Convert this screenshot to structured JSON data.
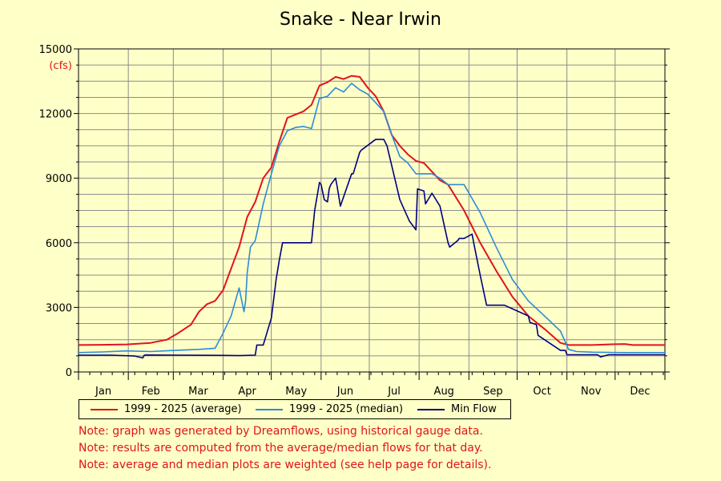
{
  "chart_data": {
    "type": "line",
    "title": "Snake - Near Irwin",
    "ylabel": "(cfs)",
    "ylim": [
      0,
      15000
    ],
    "yticks": [
      0,
      3000,
      6000,
      9000,
      12000,
      15000
    ],
    "ytick_labels": [
      "0",
      "3000",
      "6000",
      "9000",
      "12000",
      "15000"
    ],
    "xlim": [
      0,
      365
    ],
    "month_labels": [
      "Jan",
      "Feb",
      "Mar",
      "Apr",
      "May",
      "Jun",
      "Jul",
      "Aug",
      "Sep",
      "Oct",
      "Nov",
      "Dec"
    ],
    "grid": true,
    "legend_position": "bottom",
    "x_unit": "day of year",
    "series": [
      {
        "name": "1999 - 2025 (average)",
        "color": "#e0141e",
        "x": [
          0,
          15,
          30,
          45,
          55,
          62,
          70,
          75,
          80,
          85,
          90,
          95,
          100,
          105,
          110,
          115,
          120,
          125,
          130,
          135,
          140,
          145,
          150,
          155,
          160,
          165,
          170,
          175,
          180,
          185,
          190,
          195,
          200,
          205,
          210,
          215,
          220,
          225,
          230,
          240,
          250,
          260,
          270,
          280,
          290,
          300,
          305,
          310,
          320,
          330,
          340,
          345,
          350,
          365
        ],
        "y": [
          1250,
          1260,
          1280,
          1350,
          1500,
          1800,
          2200,
          2800,
          3150,
          3300,
          3800,
          4800,
          5800,
          7200,
          7900,
          9000,
          9500,
          10700,
          11800,
          11950,
          12100,
          12400,
          13300,
          13450,
          13700,
          13600,
          13750,
          13700,
          13200,
          12800,
          12100,
          11000,
          10500,
          10100,
          9800,
          9700,
          9300,
          8900,
          8700,
          7500,
          6000,
          4700,
          3500,
          2600,
          2000,
          1350,
          1250,
          1250,
          1250,
          1280,
          1300,
          1250,
          1250,
          1250
        ]
      },
      {
        "name": "1999 - 2025 (median)",
        "color": "#2b8cd7",
        "x": [
          0,
          15,
          30,
          45,
          60,
          75,
          85,
          90,
          95,
          100,
          103,
          104,
          105,
          107,
          110,
          115,
          120,
          125,
          130,
          135,
          140,
          145,
          150,
          155,
          160,
          165,
          170,
          175,
          180,
          185,
          190,
          195,
          200,
          205,
          210,
          220,
          225,
          230,
          240,
          250,
          260,
          270,
          280,
          290,
          300,
          305,
          310,
          320,
          330,
          340,
          350,
          365
        ],
        "y": [
          900,
          930,
          980,
          950,
          1000,
          1050,
          1100,
          1800,
          2600,
          3900,
          2800,
          3300,
          4600,
          5800,
          6100,
          7800,
          9200,
          10500,
          11200,
          11350,
          11400,
          11300,
          12700,
          12800,
          13200,
          13000,
          13400,
          13100,
          12900,
          12500,
          12100,
          11000,
          10000,
          9700,
          9200,
          9200,
          9000,
          8700,
          8700,
          7400,
          5800,
          4300,
          3300,
          2600,
          1900,
          1050,
          950,
          920,
          910,
          900,
          900,
          900
        ]
      },
      {
        "name": "Min Flow",
        "color": "#00007f",
        "x": [
          0,
          20,
          35,
          40,
          41,
          42,
          60,
          90,
          100,
          110,
          111,
          115,
          120,
          123,
          125,
          127,
          130,
          145,
          147,
          150,
          151,
          153,
          155,
          156,
          157,
          160,
          161,
          163,
          170,
          171,
          175,
          176,
          185,
          190,
          192,
          200,
          206,
          210,
          211,
          215,
          216,
          220,
          225,
          230,
          231,
          236,
          237,
          240,
          245,
          246,
          250,
          254,
          256,
          260,
          265,
          280,
          281,
          285,
          286,
          290,
          300,
          303,
          304,
          310,
          320,
          323,
          325,
          330,
          340,
          350,
          365
        ],
        "y": [
          780,
          780,
          740,
          650,
          780,
          790,
          780,
          770,
          760,
          780,
          1250,
          1250,
          2500,
          4300,
          5200,
          6000,
          6000,
          6000,
          7500,
          8800,
          8700,
          8000,
          7900,
          8500,
          8700,
          9000,
          8600,
          7700,
          9200,
          9200,
          10200,
          10300,
          10800,
          10800,
          10500,
          8000,
          7000,
          6600,
          8500,
          8400,
          7800,
          8300,
          7700,
          6000,
          5800,
          6100,
          6200,
          6200,
          6400,
          6000,
          4500,
          3100,
          3100,
          3100,
          3100,
          2600,
          2300,
          2200,
          1700,
          1500,
          1000,
          1000,
          800,
          800,
          800,
          800,
          700,
          800,
          800,
          800,
          800
        ]
      }
    ]
  },
  "notes": [
    "Note: graph was generated by Dreamflows, using historical gauge data.",
    "Note: results are computed from the average/median flows for that day.",
    "Note: average and median plots are weighted (see help page for details)."
  ]
}
